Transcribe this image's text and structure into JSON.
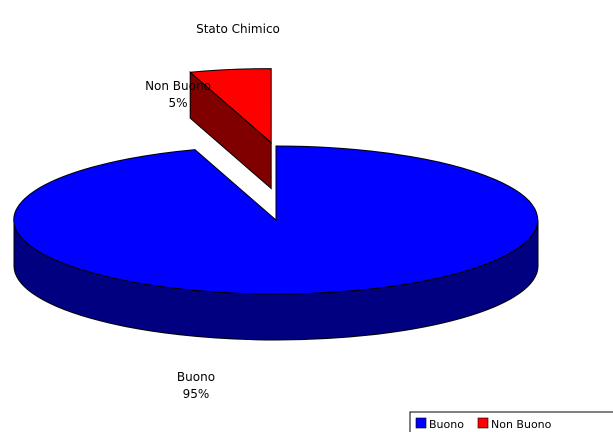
{
  "chart_data": {
    "type": "pie",
    "title": "Stato Chimico",
    "slices": [
      {
        "name": "Buono",
        "value": 95,
        "label_name": "Buono",
        "label_pct": "95%",
        "color": "#0000ff",
        "side_color": "#000080"
      },
      {
        "name": "Non Buono",
        "value": 5,
        "label_name": "Non Buono",
        "label_pct": "5%",
        "color": "#ff0000",
        "side_color": "#800000"
      }
    ],
    "legend": {
      "placement": "bottom-right",
      "entries": [
        "Buono",
        "Non Buono"
      ]
    },
    "style": "3d-exploded"
  }
}
